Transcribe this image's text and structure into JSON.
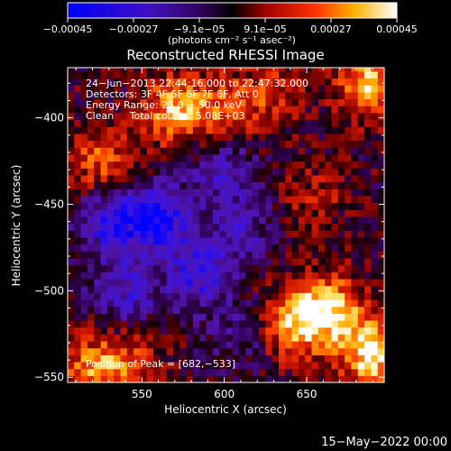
{
  "chart_data": {
    "type": "heatmap",
    "title": "Reconstructed RHESSI Image",
    "xlabel": "Heliocentric X (arcsec)",
    "ylabel": "Heliocentric Y (arcsec)",
    "xlim": [
      505,
      697
    ],
    "ylim": [
      -553,
      -371
    ],
    "xticks": [
      550,
      600,
      650
    ],
    "yticks": [
      -400,
      -450,
      -500,
      -550
    ],
    "xtick_labels": [
      "550",
      "600",
      "650"
    ],
    "ytick_labels": [
      "−400",
      "−450",
      "−500",
      "−550"
    ],
    "colorbar": {
      "min": -0.00045,
      "max": 0.00045,
      "ticks": [
        "−0.00045",
        "−0.00027",
        "−9.1e−05",
        "9.1e−05",
        "0.00027",
        "0.00045"
      ],
      "units": "(photons cm⁻² s⁻¹ asec⁻²)",
      "colormap": "blue-purple-black-red-yellow-white"
    },
    "info_lines": [
      "24−Jun−2013 22:44:16.000 to 22:47:32.000",
      "Detectors: 3F 4F 5F 6F 7F 8F, Att 0",
      "Energy Range: 25.0 − 50.0 keV",
      "Clean     Total counts: 5.08E+03"
    ],
    "peak_label": "Position of Peak = [682,−533]",
    "intensity_blobs": [
      {
        "x": 688,
        "y": -380,
        "value": 0.00036
      },
      {
        "x": 662,
        "y": -510,
        "value": 0.00042
      },
      {
        "x": 640,
        "y": -520,
        "value": 0.0003
      },
      {
        "x": 690,
        "y": -535,
        "value": 0.00045
      },
      {
        "x": 570,
        "y": -395,
        "value": 0.00034
      },
      {
        "x": 600,
        "y": -395,
        "value": 0.00022
      },
      {
        "x": 630,
        "y": -385,
        "value": 0.00018
      },
      {
        "x": 525,
        "y": -425,
        "value": 0.00024
      },
      {
        "x": 520,
        "y": -545,
        "value": 0.00028
      },
      {
        "x": 545,
        "y": -540,
        "value": 0.00018
      },
      {
        "x": 655,
        "y": -445,
        "value": 0.00012
      },
      {
        "x": 560,
        "y": -458,
        "value": -0.0004
      },
      {
        "x": 530,
        "y": -460,
        "value": -0.0003
      },
      {
        "x": 600,
        "y": -430,
        "value": -0.00022
      },
      {
        "x": 585,
        "y": -490,
        "value": -0.0003
      },
      {
        "x": 540,
        "y": -500,
        "value": -0.00025
      },
      {
        "x": 610,
        "y": -465,
        "value": -0.0002
      },
      {
        "x": 610,
        "y": -525,
        "value": -0.00014
      }
    ]
  },
  "footer": {
    "date": "15−May−2022 00:00"
  }
}
